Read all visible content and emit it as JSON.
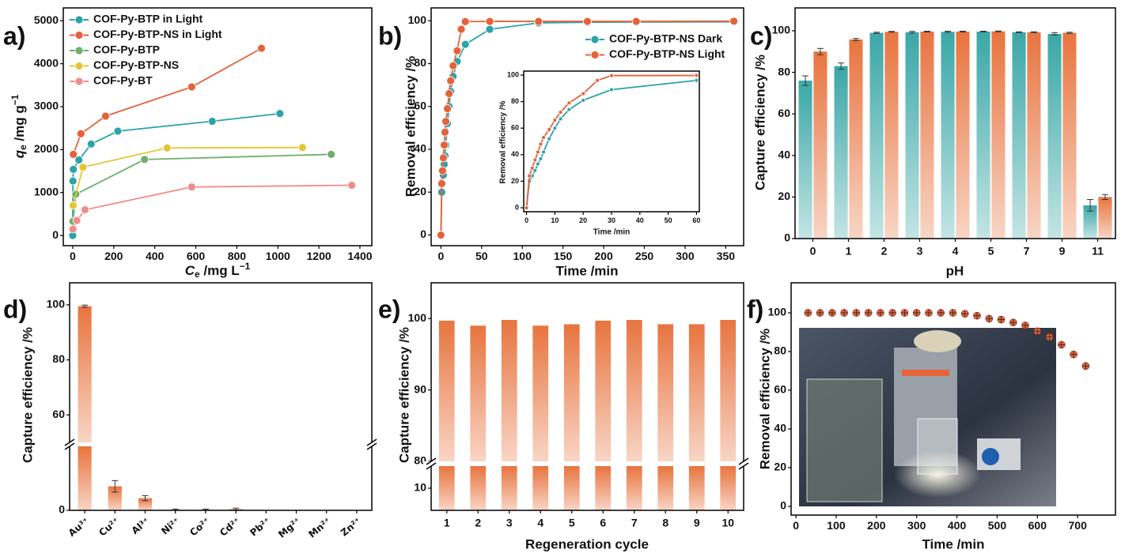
{
  "chart_data": [
    {
      "type": "line",
      "panel_label": "a)",
      "xlabel": {
        "symbol": "C",
        "subscript": "e",
        "unit": " /mg L",
        "superscript": "−1"
      },
      "ylabel": {
        "symbol": "q",
        "subscript": "e",
        "unit": " /mg g",
        "superscript": "−1"
      },
      "xlim": [
        -46,
        1458
      ],
      "ylim": [
        -237,
        5300
      ],
      "xticks": [
        0,
        200,
        400,
        600,
        800,
        1000,
        1200,
        1400
      ],
      "yticks": [
        0,
        1000,
        2000,
        3000,
        4000,
        5000
      ],
      "legend": "upper left",
      "series": [
        {
          "name": "COF-Py-BTP in Light",
          "color": "#2ba3a8",
          "x": [
            0,
            1,
            3,
            30,
            90,
            220,
            680,
            1010
          ],
          "values": [
            0,
            1270,
            1540,
            1760,
            2130,
            2430,
            2660,
            2840
          ]
        },
        {
          "name": "COF-Py-BTP-NS in Light",
          "color": "#e5623a",
          "x": [
            3,
            40,
            160,
            580,
            920
          ],
          "values": [
            1890,
            2370,
            2780,
            3460,
            4360
          ]
        },
        {
          "name": "COF-Py-BTP",
          "color": "#6daf6d",
          "x": [
            1,
            15,
            350,
            1260
          ],
          "values": [
            330,
            960,
            1770,
            1890
          ]
        },
        {
          "name": "COF-Py-BTP-NS",
          "color": "#e3c634",
          "x": [
            2,
            50,
            460,
            1120
          ],
          "values": [
            700,
            1590,
            2040,
            2050
          ]
        },
        {
          "name": "COF-Py-BT",
          "color": "#f08c8c",
          "x": [
            1,
            20,
            60,
            580,
            1360
          ],
          "values": [
            150,
            350,
            600,
            1130,
            1170
          ]
        }
      ]
    },
    {
      "type": "line",
      "panel_label": "b)",
      "xlabel": "Time /min",
      "ylabel": "Removal efficiency /%",
      "xlim": [
        -12,
        372
      ],
      "ylim": [
        -5,
        106
      ],
      "xticks": [
        0,
        50,
        100,
        150,
        200,
        250,
        300,
        350
      ],
      "yticks": [
        0,
        20,
        40,
        60,
        80,
        100
      ],
      "legend": "upper right",
      "series": [
        {
          "name": "COF-Py-BTP-NS Dark",
          "color": "#2ba3a8",
          "x": [
            0,
            1,
            2,
            3,
            4,
            5,
            6,
            8,
            10,
            12,
            15,
            20,
            30,
            60,
            120,
            180,
            240,
            360
          ],
          "values": [
            0,
            20,
            24,
            28,
            33,
            37,
            42,
            52,
            60,
            67,
            74,
            81,
            89,
            96,
            99,
            99.3,
            99.4,
            99.5
          ]
        },
        {
          "name": "COF-Py-BTP-NS Light",
          "color": "#e5623a",
          "x": [
            0,
            1,
            2,
            3,
            4,
            5,
            6,
            8,
            10,
            12,
            15,
            20,
            25,
            30,
            60,
            120,
            180,
            240,
            360
          ],
          "values": [
            0,
            24,
            30,
            36,
            42,
            48,
            53,
            59,
            66,
            72,
            79,
            86,
            96,
            99.6,
            99.7,
            99.7,
            99.7,
            99.7,
            99.8
          ]
        }
      ],
      "inset": {
        "xlabel": "Time /min",
        "ylabel": "Removal efficiency /%",
        "xlim": [
          -1,
          61
        ],
        "ylim": [
          -3,
          103
        ],
        "xticks": [
          0,
          10,
          20,
          30,
          40,
          50,
          60
        ],
        "yticks": [
          0,
          20,
          40,
          60,
          80,
          100
        ]
      }
    },
    {
      "type": "bar",
      "panel_label": "c)",
      "xlabel": "pH",
      "ylabel": "Capture efficiency /%",
      "categories": [
        "0",
        "1",
        "2",
        "3",
        "4",
        "5",
        "7",
        "9",
        "11"
      ],
      "ylim": [
        0,
        111
      ],
      "yticks": [
        0,
        20,
        40,
        60,
        80,
        100
      ],
      "series": [
        {
          "color": "#3aa7a7",
          "values": [
            76,
            83,
            99,
            99.3,
            99.5,
            99.6,
            99.3,
            98.5,
            16
          ],
          "errors": [
            2.3,
            1.5,
            0.3,
            0.4,
            0.3,
            0.2,
            0.2,
            0.6,
            2.8
          ]
        },
        {
          "color": "#e8743f",
          "values": [
            90,
            95.8,
            99.5,
            99.6,
            99.6,
            99.7,
            99.3,
            99,
            20
          ],
          "errors": [
            1.5,
            0.5,
            0.2,
            0.2,
            0.2,
            0.2,
            0.2,
            0.3,
            1.2
          ]
        }
      ]
    },
    {
      "type": "bar",
      "panel_label": "d)",
      "ylabel": "Capture efficiency /%",
      "categories": [
        "Au³⁺",
        "Cu²⁺",
        "Al³⁺",
        "Ni²⁺",
        "Co²⁺",
        "Cd²⁺",
        "Pb²⁺",
        "Mg²⁺",
        "Mn²⁺",
        "Zn²⁺"
      ],
      "values": [
        99.5,
        7.5,
        3.8,
        0.2,
        0.2,
        0.4,
        0,
        0,
        0,
        0
      ],
      "errors": [
        0.4,
        1.8,
        0.8,
        0.2,
        0.2,
        0.3,
        0,
        0,
        0,
        0
      ],
      "color": "#e8743f",
      "ylim": [
        0,
        108
      ],
      "ybreak": [
        20,
        50
      ],
      "yticks": [
        0,
        60,
        80,
        100
      ]
    },
    {
      "type": "bar",
      "panel_label": "e)",
      "xlabel": "Regeneration cycle",
      "ylabel": "Capture efficiency /%",
      "categories": [
        "1",
        "2",
        "3",
        "4",
        "5",
        "6",
        "7",
        "8",
        "9",
        "10"
      ],
      "values": [
        99.7,
        99,
        99.8,
        99,
        99.2,
        99.7,
        99.8,
        99.2,
        99.2,
        99.8
      ],
      "color": "#e8743f",
      "ylim": [
        0,
        105
      ],
      "ybreak": [
        20,
        80
      ],
      "yticks": [
        10,
        80,
        90,
        100
      ]
    },
    {
      "type": "scatter",
      "panel_label": "f)",
      "xlabel": "Time /min",
      "ylabel": "Removal efficiency /%",
      "x": [
        30,
        60,
        90,
        120,
        150,
        180,
        210,
        240,
        270,
        300,
        330,
        360,
        390,
        420,
        450,
        480,
        510,
        540,
        570,
        600,
        630,
        660,
        690,
        720
      ],
      "values": [
        100,
        100,
        100,
        100,
        100,
        100,
        100,
        100,
        100,
        100,
        100,
        100,
        100,
        99.5,
        98.5,
        97,
        96.5,
        95,
        93.5,
        90.5,
        87.5,
        83.5,
        78.5,
        72.5
      ],
      "color": "#e5623a",
      "xlim": [
        -12,
        794
      ],
      "ylim": [
        -4.5,
        115.5
      ],
      "xticks": [
        0,
        100,
        200,
        300,
        400,
        500,
        600,
        700
      ],
      "yticks": [
        0,
        20,
        40,
        60,
        80,
        100
      ]
    }
  ]
}
